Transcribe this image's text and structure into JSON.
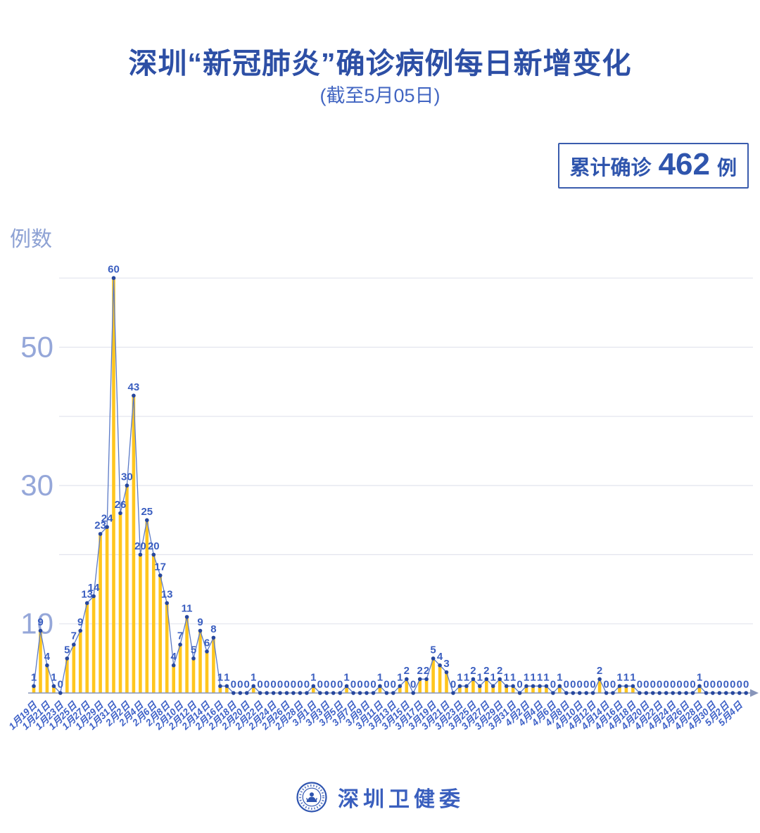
{
  "page": {
    "title": "深圳“新冠肺炎”确诊病例每日新增变化",
    "subtitle": "(截至5月05日)"
  },
  "badge": {
    "label": "累计确诊",
    "value": "462",
    "unit": "例"
  },
  "footer": {
    "brand": "深圳卫健委",
    "logo_icon": "shenzhen-health-commission-seal"
  },
  "chart_data": {
    "type": "bar",
    "title": "深圳“新冠肺炎”确诊病例每日新增变化",
    "subtitle": "(截至5月05日)",
    "ylabel": "例数",
    "xlabel": "",
    "ylim": [
      0,
      62
    ],
    "grid": "horizontal",
    "gridline_values": [
      10,
      20,
      30,
      40,
      50,
      60
    ],
    "y_axis": {
      "labeled_ticks": [
        50,
        30,
        10
      ]
    },
    "x_axis": {
      "tick_step": 2,
      "tick_labels": [
        "1月19日",
        "1月21日",
        "1月23日",
        "1月25日",
        "1月27日",
        "1月29日",
        "1月31日",
        "2月2日",
        "2月4日",
        "2月6日",
        "2月8日",
        "2月10日",
        "2月12日",
        "2月14日",
        "2月16日",
        "2月18日",
        "2月20日",
        "2月22日",
        "2月24日",
        "2月26日",
        "2月28日",
        "3月1日",
        "3月3日",
        "3月5日",
        "3月7日",
        "3月9日",
        "3月11日",
        "3月13日",
        "3月15日",
        "3月17日",
        "3月19日",
        "3月21日",
        "3月23日",
        "3月25日",
        "3月27日",
        "3月29日",
        "3月31日",
        "4月2日",
        "4月4日",
        "4月6日",
        "4月8日",
        "4月10日",
        "4月12日",
        "4月14日",
        "4月16日",
        "4月18日",
        "4月20日",
        "4月22日",
        "4月24日",
        "4月26日",
        "4月28日",
        "4月30日",
        "5月2日",
        "5月4日"
      ]
    },
    "values": [
      1,
      9,
      4,
      1,
      0,
      5,
      7,
      9,
      13,
      14,
      23,
      24,
      60,
      26,
      30,
      43,
      20,
      25,
      20,
      17,
      13,
      4,
      7,
      11,
      5,
      9,
      6,
      8,
      1,
      1,
      0,
      0,
      0,
      1,
      0,
      0,
      0,
      0,
      0,
      0,
      0,
      0,
      1,
      0,
      0,
      0,
      0,
      1,
      0,
      0,
      0,
      0,
      1,
      0,
      0,
      1,
      2,
      0,
      2,
      2,
      5,
      4,
      3,
      0,
      1,
      1,
      2,
      1,
      2,
      1,
      2,
      1,
      1,
      0,
      1,
      1,
      1,
      1,
      0,
      1,
      0,
      0,
      0,
      0,
      0,
      2,
      0,
      0,
      1,
      1,
      1,
      0,
      0,
      0,
      0,
      0,
      0,
      0,
      0,
      0,
      1,
      0,
      0,
      0,
      0,
      0,
      0,
      0
    ],
    "total_cases": 462,
    "colors": {
      "bar": "#ffc61e",
      "line": "#5b7ac6",
      "point": "#26479e",
      "value_label": "#3a5ec0",
      "x_tick_label": "#3f62c8",
      "y_tick_label": "#95a7d9",
      "y_axis_title": "#8ea2d4",
      "gridline": "#e2e4ee",
      "axis_line": "#8795ba",
      "title_blue": "#2d4fa5",
      "badge_blue": "#2f55ad"
    }
  }
}
